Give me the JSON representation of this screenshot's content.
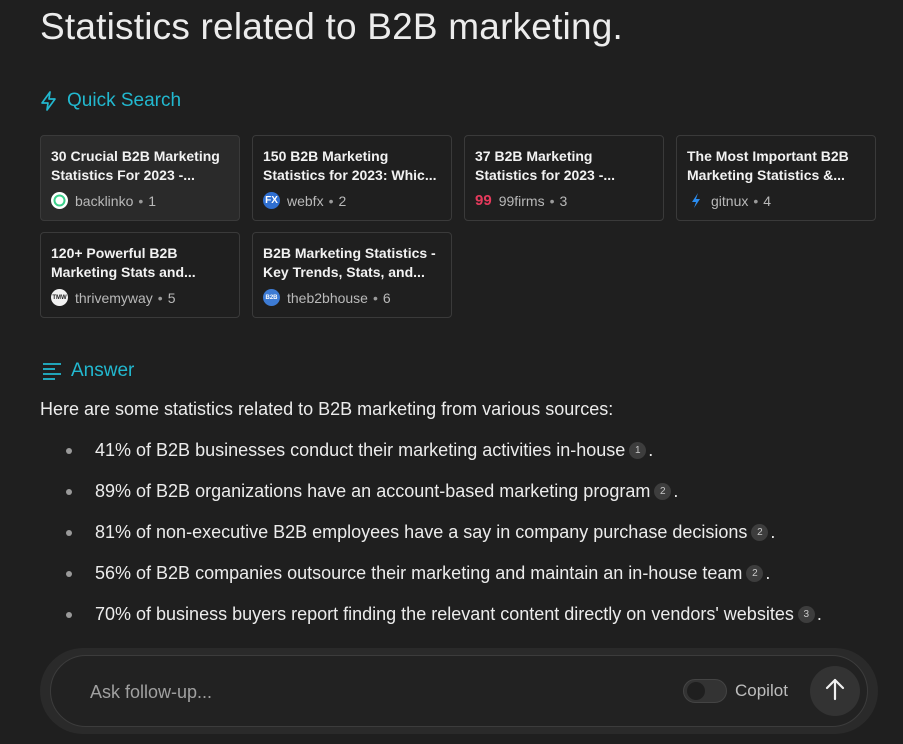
{
  "page": {
    "title": "Statistics related to B2B marketing."
  },
  "quick_search": {
    "heading": "Quick Search",
    "sources": [
      {
        "title": "30 Crucial B2B Marketing Statistics For 2023 -...",
        "site": "backlinko",
        "index": "1",
        "icon": "backlinko-logo-icon",
        "icon_text": "",
        "color": "#3bd08b"
      },
      {
        "title": "150 B2B Marketing Statistics for 2023: Whic...",
        "site": "webfx",
        "index": "2",
        "icon": "webfx-logo-icon",
        "icon_text": "FX",
        "color": "#2f6fd1"
      },
      {
        "title": "37 B2B Marketing Statistics for 2023 -...",
        "site": "99firms",
        "index": "3",
        "icon": "99firms-logo-icon",
        "icon_text": "99",
        "color": "#e63a5c"
      },
      {
        "title": "The Most Important B2B Marketing Statistics &...",
        "site": "gitnux",
        "index": "4",
        "icon": "gitnux-logo-icon",
        "icon_text": "",
        "color": "#2a8cf0"
      },
      {
        "title": "120+ Powerful B2B Marketing Stats and...",
        "site": "thrivemyway",
        "index": "5",
        "icon": "thrivemyway-logo-icon",
        "icon_text": "TMW",
        "color": "#f2f2f2"
      },
      {
        "title": "B2B Marketing Statistics - Key Trends, Stats, and...",
        "site": "theb2bhouse",
        "index": "6",
        "icon": "theb2bhouse-logo-icon",
        "icon_text": "B2B",
        "color": "#3d7bd4"
      }
    ]
  },
  "answer": {
    "heading": "Answer",
    "intro": "Here are some statistics related to B2B marketing from various sources:",
    "items": [
      {
        "text": "41% of B2B businesses conduct their marketing activities in-house",
        "cite": "1"
      },
      {
        "text": "89% of B2B organizations have an account-based marketing program",
        "cite": "2"
      },
      {
        "text": "81% of non-executive B2B employees have a say in company purchase decisions",
        "cite": "2"
      },
      {
        "text": "56% of B2B companies outsource their marketing and maintain an in-house team",
        "cite": "2"
      },
      {
        "text": "70% of business buyers report finding the relevant content directly on vendors' websites",
        "cite": "3"
      }
    ]
  },
  "composer": {
    "placeholder": "Ask follow-up...",
    "copilot_label": "Copilot",
    "copilot_enabled": false
  },
  "colors": {
    "accent": "#22b8cf",
    "background": "#1f1f1f"
  }
}
